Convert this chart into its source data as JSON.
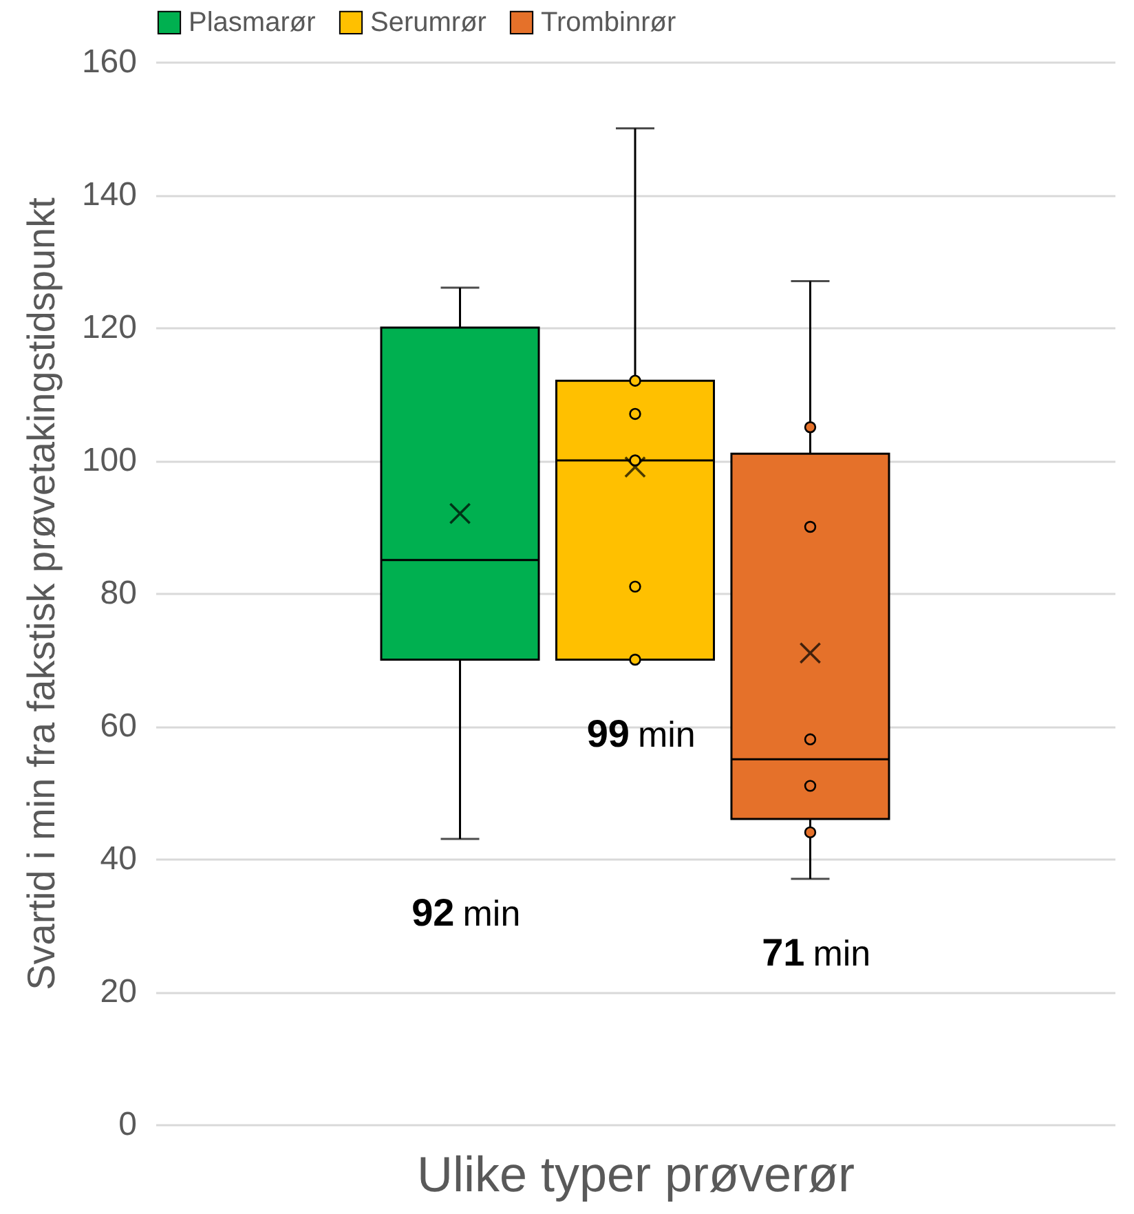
{
  "chart_data": {
    "type": "box",
    "xlabel": "Ulike typer prøverør",
    "ylabel": "Svartid i min fra fakstisk prøvetakingstidspunkt",
    "categories": [
      null
    ],
    "series": [
      {
        "name": "Plasmarør",
        "color": "#00b050",
        "boxes": [
          {
            "low": 43,
            "q1": 70,
            "median": 85,
            "q3": 120,
            "high": 126,
            "mean": 92
          }
        ]
      },
      {
        "name": "Serumrør",
        "color": "#ffc000",
        "boxes": [
          {
            "low": 70,
            "q1": 70,
            "median": 100,
            "q3": 112,
            "high": 150,
            "mean": 99,
            "outliers": [
              112,
              107,
              100,
              81,
              70
            ]
          }
        ]
      },
      {
        "name": "Trombinrør",
        "color": "#e5712a",
        "boxes": [
          {
            "low": 37,
            "q1": 46,
            "median": 55,
            "q3": 101,
            "high": 127,
            "mean": 71,
            "outliers": [
              105,
              90,
              58,
              51,
              44
            ]
          }
        ]
      }
    ],
    "annotations": [
      "92 min",
      "99 min",
      "71 min"
    ],
    "ylim": [
      0,
      160
    ],
    "yticks": [
      0,
      20,
      40,
      60,
      80,
      100,
      120,
      140,
      160
    ],
    "grid": "y",
    "legend": "top",
    "tick_labels": "y"
  }
}
